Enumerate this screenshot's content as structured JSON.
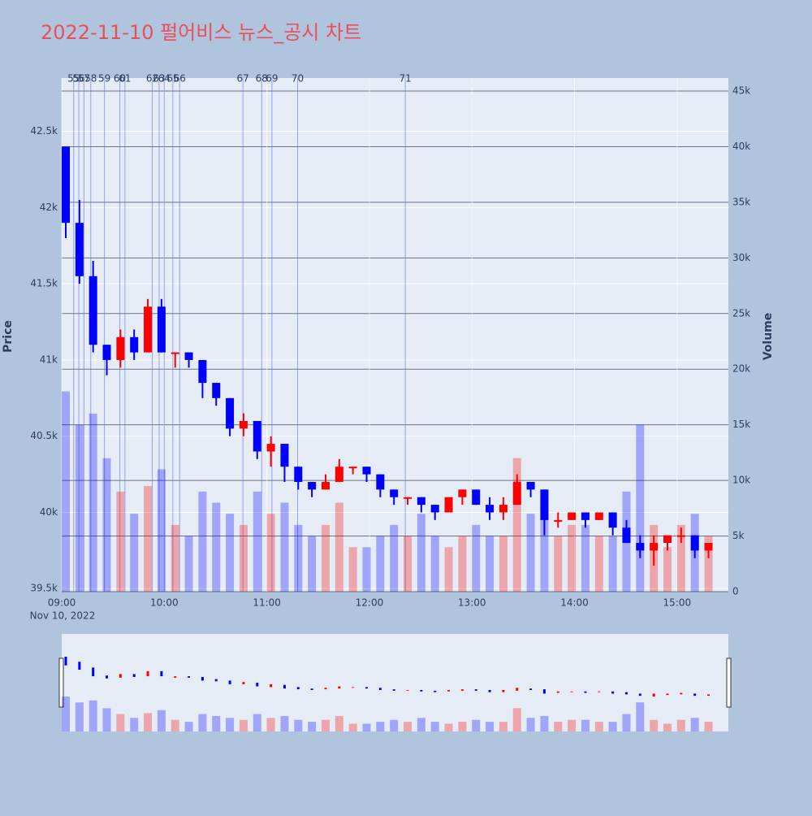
{
  "chart_data": {
    "type": "candlestick",
    "title": "2022-11-10 펄어비스 뉴스_공시 차트",
    "y_label": "Price",
    "y2_label": "Volume",
    "x_date_label": "Nov 10, 2022",
    "increasing_color": "#ff0000",
    "decreasing_color": "#0000ff",
    "x": [
      "09:00",
      "09:08",
      "09:16",
      "09:24",
      "09:32",
      "09:40",
      "09:48",
      "09:56",
      "10:04",
      "10:12",
      "10:20",
      "10:28",
      "10:36",
      "10:44",
      "10:52",
      "11:00",
      "11:08",
      "11:16",
      "11:24",
      "11:32",
      "11:40",
      "11:48",
      "11:56",
      "12:04",
      "12:12",
      "12:20",
      "12:28",
      "12:36",
      "12:44",
      "12:52",
      "13:00",
      "13:08",
      "13:16",
      "13:24",
      "13:32",
      "13:40",
      "13:48",
      "13:56",
      "14:04",
      "14:12",
      "14:20",
      "14:28",
      "14:36",
      "14:44",
      "14:52",
      "15:00",
      "15:08",
      "15:16"
    ],
    "open": [
      42400,
      41900,
      41550,
      41100,
      41000,
      41150,
      41050,
      41350,
      41050,
      41050,
      41000,
      40850,
      40750,
      40550,
      40600,
      40400,
      40450,
      40300,
      40200,
      40150,
      40200,
      40300,
      40300,
      40250,
      40150,
      40100,
      40100,
      40050,
      40000,
      40100,
      40150,
      40050,
      40000,
      40050,
      40200,
      40150,
      39950,
      39950,
      40000,
      39950,
      40000,
      39900,
      39800,
      39750,
      39800,
      39850,
      39850,
      39750
    ],
    "high": [
      42400,
      42050,
      41650,
      41100,
      41200,
      41200,
      41400,
      41400,
      41050,
      41050,
      41000,
      40850,
      40750,
      40650,
      40600,
      40500,
      40450,
      40300,
      40200,
      40250,
      40350,
      40300,
      40300,
      40250,
      40150,
      40100,
      40100,
      40050,
      40100,
      40150,
      40150,
      40100,
      40100,
      40250,
      40200,
      40150,
      40000,
      40000,
      40000,
      40000,
      40000,
      39950,
      39850,
      39850,
      39850,
      39900,
      39850,
      39800
    ],
    "low": [
      41800,
      41500,
      41050,
      40900,
      40950,
      41000,
      41050,
      41050,
      40950,
      40950,
      40750,
      40700,
      40500,
      40500,
      40350,
      40300,
      40200,
      40150,
      40100,
      40150,
      40200,
      40250,
      40200,
      40100,
      40050,
      40050,
      40000,
      39950,
      40000,
      40050,
      40050,
      39950,
      39950,
      40050,
      40100,
      39850,
      39900,
      39950,
      39900,
      39950,
      39850,
      39800,
      39700,
      39650,
      39750,
      39800,
      39700,
      39700
    ],
    "close": [
      41900,
      41550,
      41100,
      41000,
      41150,
      41050,
      41350,
      41050,
      41050,
      41000,
      40850,
      40750,
      40550,
      40600,
      40400,
      40450,
      40300,
      40200,
      40150,
      40200,
      40300,
      40300,
      40250,
      40150,
      40100,
      40100,
      40050,
      40000,
      40100,
      40150,
      40050,
      40000,
      40050,
      40200,
      40150,
      39950,
      39950,
      40000,
      39950,
      40000,
      39900,
      39800,
      39750,
      39800,
      39850,
      39850,
      39750,
      39800
    ],
    "volume": [
      18000,
      15000,
      16000,
      12000,
      9000,
      7000,
      9500,
      11000,
      6000,
      5000,
      9000,
      8000,
      7000,
      6000,
      9000,
      7000,
      8000,
      6000,
      5000,
      6000,
      8000,
      4000,
      4000,
      5000,
      6000,
      5000,
      7000,
      5000,
      4000,
      5000,
      6000,
      5000,
      5000,
      12000,
      7000,
      8000,
      5000,
      6000,
      6000,
      5000,
      5000,
      9000,
      15000,
      6000,
      4000,
      6000,
      7000,
      5000
    ],
    "xlim": [
      "09:00",
      "15:30"
    ],
    "xticks": [
      "09:00",
      "10:00",
      "11:00",
      "12:00",
      "13:00",
      "14:00",
      "15:00"
    ],
    "ylim": [
      39480,
      42850
    ],
    "yticks": [
      {
        "value": 39500,
        "label": "39.5k"
      },
      {
        "value": 40000,
        "label": "40k"
      },
      {
        "value": 40500,
        "label": "40.5k"
      },
      {
        "value": 41000,
        "label": "41k"
      },
      {
        "value": 41500,
        "label": "41.5k"
      },
      {
        "value": 42000,
        "label": "42k"
      },
      {
        "value": 42500,
        "label": "42.5k"
      }
    ],
    "y2lim": [
      0,
      46170
    ],
    "y2ticks": [
      0,
      {
        "value": 5000,
        "label": "5k"
      },
      {
        "value": 10000,
        "label": "10k"
      },
      {
        "value": 15000,
        "label": "15k"
      },
      {
        "value": 20000,
        "label": "20k"
      },
      {
        "value": 25000,
        "label": "25k"
      },
      {
        "value": 30000,
        "label": "30k"
      },
      {
        "value": 35000,
        "label": "35k"
      },
      {
        "value": 40000,
        "label": "40k"
      },
      {
        "value": 45000,
        "label": "45k"
      }
    ],
    "news": [
      {
        "label": "55",
        "x": "09:07"
      },
      {
        "label": "56",
        "x": "09:10"
      },
      {
        "label": "57",
        "x": "09:13"
      },
      {
        "label": "58",
        "x": "09:17"
      },
      {
        "label": "59",
        "x": "09:25"
      },
      {
        "label": "60",
        "x": "09:34"
      },
      {
        "label": "61",
        "x": "09:37"
      },
      {
        "label": "62",
        "x": "09:53"
      },
      {
        "label": "63",
        "x": "09:57"
      },
      {
        "label": "64",
        "x": "10:00"
      },
      {
        "label": "65",
        "x": "10:05"
      },
      {
        "label": "66",
        "x": "10:09"
      },
      {
        "label": "67",
        "x": "10:46"
      },
      {
        "label": "68",
        "x": "10:57"
      },
      {
        "label": "69",
        "x": "11:03"
      },
      {
        "label": "70",
        "x": "11:18"
      },
      {
        "label": "71",
        "x": "12:21"
      }
    ]
  }
}
